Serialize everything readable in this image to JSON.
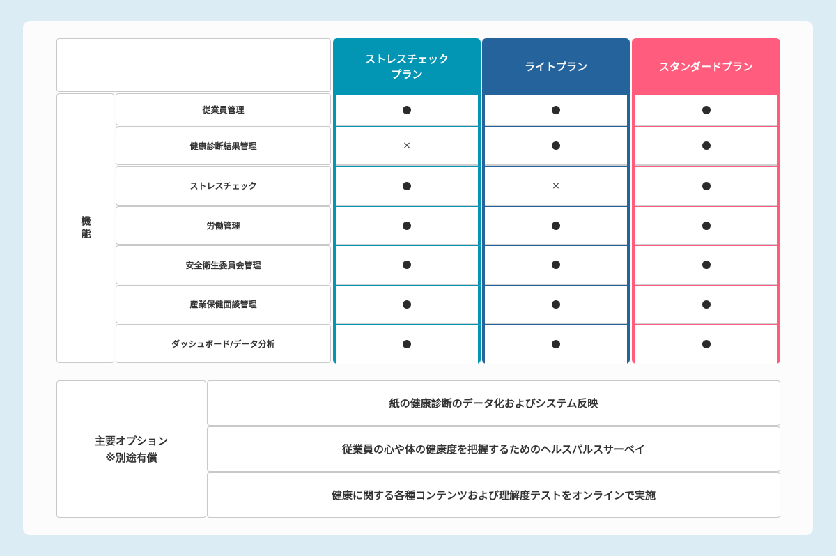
{
  "colors": {
    "stress": "#0296b4",
    "light": "#25639c",
    "standard": "#ff5c7e"
  },
  "plans": [
    {
      "name": "ストレスチェック\nプラン",
      "line1": "ストレスチェック",
      "line2": "プラン",
      "color": "#0296b4",
      "values": [
        "●",
        "×",
        "●",
        "●",
        "●",
        "●",
        "●"
      ]
    },
    {
      "name": "ライトプラン",
      "line1": "ライトプラン",
      "line2": "",
      "color": "#25639c",
      "values": [
        "●",
        "●",
        "×",
        "●",
        "●",
        "●",
        "●"
      ]
    },
    {
      "name": "スタンダードプラン",
      "line1": "スタンダードプラン",
      "line2": "",
      "color": "#ff5c7e",
      "values": [
        "●",
        "●",
        "●",
        "●",
        "●",
        "●",
        "●"
      ]
    }
  ],
  "features": {
    "category": "機能",
    "items": [
      "従業員管理",
      "健康診断結果管理",
      "ストレスチェック",
      "労働管理",
      "安全衛生委員会管理",
      "産業保健面談管理",
      "ダッシュボード/データ分析"
    ]
  },
  "options": {
    "label1": "主要オプション",
    "label2": "※別途有償",
    "items": [
      "紙の健康診断のデータ化およびシステム反映",
      "従業員の心や体の健康度を把握するためのヘルスパルスサーベイ",
      "健康に関する各種コンテンツおよび理解度テストをオンラインで実施"
    ]
  }
}
